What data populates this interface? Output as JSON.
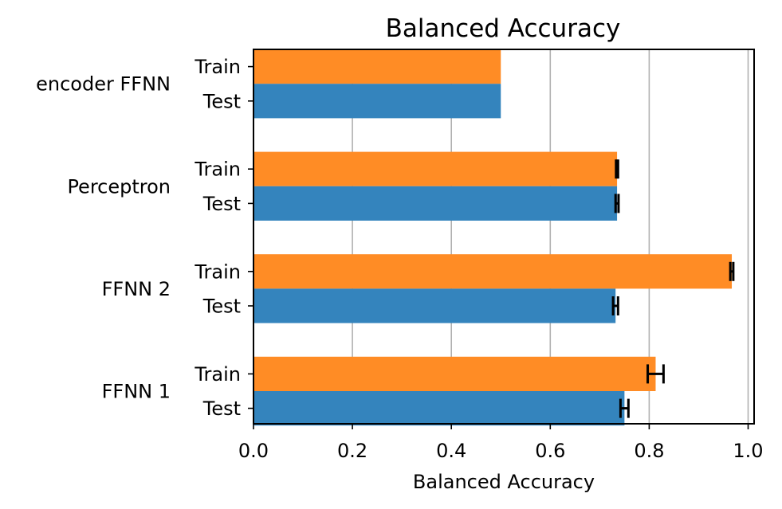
{
  "chart_data": {
    "type": "bar",
    "orientation": "horizontal",
    "title": "Balanced Accuracy",
    "xlabel": "Balanced Accuracy",
    "xlim": [
      0.0,
      1.0
    ],
    "xticks": [
      "0.0",
      "0.2",
      "0.4",
      "0.6",
      "0.8",
      "1.0"
    ],
    "grid": "vertical",
    "groups": [
      {
        "name": "encoder FFNN",
        "bars": [
          {
            "label": "Train",
            "value": 0.5,
            "error": 0.0
          },
          {
            "label": "Test",
            "value": 0.5,
            "error": 0.0
          }
        ]
      },
      {
        "name": "Perceptron",
        "bars": [
          {
            "label": "Train",
            "value": 0.735,
            "error": 0.002
          },
          {
            "label": "Test",
            "value": 0.735,
            "error": 0.003
          }
        ]
      },
      {
        "name": "FFNN 2",
        "bars": [
          {
            "label": "Train",
            "value": 0.967,
            "error": 0.003
          },
          {
            "label": "Test",
            "value": 0.732,
            "error": 0.005
          }
        ]
      },
      {
        "name": "FFNN 1",
        "bars": [
          {
            "label": "Train",
            "value": 0.813,
            "error": 0.016
          },
          {
            "label": "Test",
            "value": 0.75,
            "error": 0.008
          }
        ]
      }
    ],
    "colors": {
      "Train": "#ff8c25",
      "Test": "#3484bd"
    }
  }
}
